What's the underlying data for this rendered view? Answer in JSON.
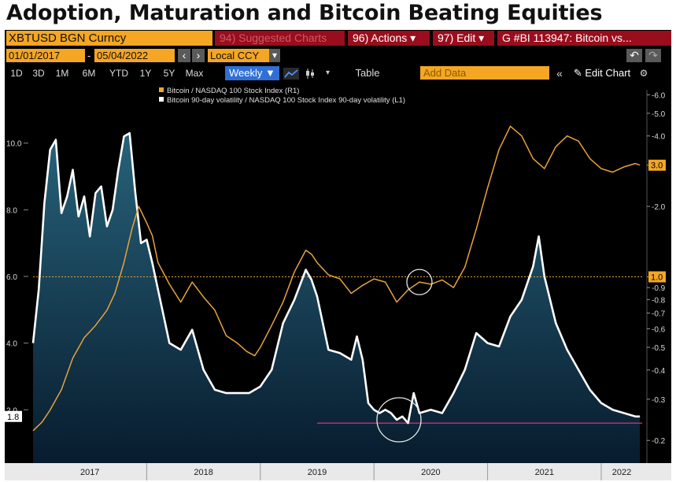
{
  "header": {
    "title": "Adoption, Maturation and Bitcoin Beating Equities"
  },
  "toolbar1": {
    "ticker": "XBTUSD BGN Curncy",
    "suggested": "94) Suggested Charts",
    "actions": "96) Actions ▾",
    "edit": "97) Edit ▾",
    "chart_id": "G #BI 113947: Bitcoin vs..."
  },
  "toolbar2": {
    "date_from": "01/01/2017",
    "date_sep": "-",
    "date_to": "05/04/2022",
    "currency": "Local CCY",
    "currency_arrow": "▾",
    "nav_prev": "‹",
    "nav_next": "›",
    "undo": "↶",
    "redo": "↷"
  },
  "toolbar3": {
    "periods": [
      "1D",
      "3D",
      "1M",
      "6M",
      "YTD",
      "1Y",
      "5Y",
      "Max"
    ],
    "frequency": "Weekly ▼",
    "table": "Table",
    "add_data": "Add Data",
    "collapse": "«",
    "edit_chart": "✎ Edit Chart",
    "settings": "⚙"
  },
  "colors": {
    "accent": "#f5a623",
    "btc_line": "#e8a33a",
    "vol_line": "#ffffff",
    "area_top": "#27627a",
    "area_bottom": "#081c2e",
    "magenta": "#e0307a",
    "menu_red": "#9a0d1c"
  },
  "chart_data": {
    "type": "line",
    "x_ticks": [
      "2017",
      "2018",
      "2019",
      "2020",
      "2021",
      "2022"
    ],
    "legend": [
      {
        "label": "Bitcoin / NASDAQ 100 Stock Index (R1)",
        "color": "#f5a623"
      },
      {
        "label": "Bitcoin 90-day volatility / NASDAQ 100 Stock Index 90-day volatility (L1)",
        "color": "#ffffff"
      }
    ],
    "left_axis": {
      "ticks": [
        "10.0",
        "8.0",
        "6.0",
        "4.0",
        "2.0"
      ],
      "range": [
        0.4,
        11.6
      ],
      "last_value": "1.8"
    },
    "right_axis": {
      "scale": "log",
      "ticks": [
        "6.0",
        "5.0",
        "4.0",
        "3.0",
        "2.0",
        "1.0",
        "0.9",
        "0.8",
        "0.7",
        "0.6",
        "0.5",
        "0.4",
        "0.3",
        "0.2"
      ],
      "range": [
        0.16,
        6.3
      ],
      "last_value": "3.0",
      "reference_label": "1.0"
    },
    "series": [
      {
        "name": "Bitcoin / NASDAQ 100 Stock Index (R1)",
        "axis": "right",
        "x": [
          2017.0,
          2017.08,
          2017.15,
          2017.25,
          2017.35,
          2017.45,
          2017.55,
          2017.65,
          2017.72,
          2017.8,
          2017.87,
          2017.93,
          2018.0,
          2018.05,
          2018.1,
          2018.2,
          2018.3,
          2018.4,
          2018.5,
          2018.6,
          2018.7,
          2018.8,
          2018.88,
          2018.95,
          2019.0,
          2019.1,
          2019.2,
          2019.3,
          2019.4,
          2019.45,
          2019.5,
          2019.6,
          2019.7,
          2019.8,
          2019.9,
          2020.0,
          2020.1,
          2020.2,
          2020.3,
          2020.4,
          2020.5,
          2020.6,
          2020.7,
          2020.8,
          2020.9,
          2021.0,
          2021.1,
          2021.2,
          2021.3,
          2021.4,
          2021.5,
          2021.6,
          2021.7,
          2021.8,
          2021.9,
          2022.0,
          2022.1,
          2022.2,
          2022.3,
          2022.34
        ],
        "values": [
          0.22,
          0.24,
          0.27,
          0.33,
          0.45,
          0.55,
          0.62,
          0.72,
          0.85,
          1.15,
          1.6,
          2.0,
          1.7,
          1.5,
          1.15,
          0.93,
          0.78,
          0.95,
          0.82,
          0.72,
          0.56,
          0.52,
          0.48,
          0.46,
          0.5,
          0.62,
          0.78,
          1.05,
          1.3,
          1.25,
          1.15,
          1.02,
          0.98,
          0.85,
          0.92,
          0.98,
          0.95,
          0.78,
          0.88,
          0.95,
          0.93,
          0.97,
          0.9,
          1.1,
          1.6,
          2.4,
          3.5,
          4.4,
          4.0,
          3.2,
          2.9,
          3.6,
          4.0,
          3.8,
          3.2,
          2.9,
          2.8,
          2.95,
          3.05,
          3.0
        ]
      },
      {
        "name": "Bitcoin 90-day volatility / NASDAQ 100 Stock Index 90-day volatility (L1)",
        "axis": "left",
        "x": [
          2017.0,
          2017.05,
          2017.1,
          2017.15,
          2017.2,
          2017.25,
          2017.3,
          2017.35,
          2017.4,
          2017.45,
          2017.5,
          2017.55,
          2017.6,
          2017.65,
          2017.7,
          2017.75,
          2017.8,
          2017.85,
          2017.9,
          2017.95,
          2018.0,
          2018.05,
          2018.1,
          2018.15,
          2018.2,
          2018.3,
          2018.4,
          2018.5,
          2018.6,
          2018.7,
          2018.8,
          2018.9,
          2019.0,
          2019.1,
          2019.2,
          2019.3,
          2019.4,
          2019.45,
          2019.5,
          2019.55,
          2019.6,
          2019.7,
          2019.8,
          2019.85,
          2019.9,
          2019.95,
          2020.0,
          2020.05,
          2020.1,
          2020.15,
          2020.2,
          2020.25,
          2020.3,
          2020.35,
          2020.4,
          2020.5,
          2020.6,
          2020.7,
          2020.8,
          2020.9,
          2021.0,
          2021.1,
          2021.2,
          2021.3,
          2021.4,
          2021.45,
          2021.5,
          2021.6,
          2021.7,
          2021.8,
          2021.9,
          2022.0,
          2022.1,
          2022.2,
          2022.3,
          2022.34
        ],
        "values": [
          4.0,
          5.6,
          8.2,
          9.8,
          10.1,
          7.9,
          8.4,
          9.2,
          7.8,
          8.4,
          7.2,
          8.5,
          8.7,
          7.5,
          8.0,
          9.2,
          10.2,
          10.3,
          8.5,
          7.0,
          7.1,
          6.4,
          5.6,
          4.8,
          4.0,
          3.8,
          4.4,
          3.2,
          2.6,
          2.5,
          2.5,
          2.5,
          2.7,
          3.2,
          4.6,
          5.3,
          6.2,
          5.9,
          5.4,
          4.6,
          3.8,
          3.7,
          3.5,
          4.2,
          3.5,
          2.2,
          2.0,
          1.9,
          2.0,
          1.9,
          1.7,
          1.8,
          1.6,
          2.5,
          1.9,
          2.0,
          1.9,
          2.5,
          3.2,
          4.3,
          4.0,
          3.9,
          4.8,
          5.3,
          6.3,
          7.2,
          6.0,
          4.6,
          3.8,
          3.2,
          2.6,
          2.2,
          2.0,
          1.9,
          1.8,
          1.8
        ]
      }
    ],
    "reference_line_right": 1.0,
    "support_line_left": 1.6
  }
}
